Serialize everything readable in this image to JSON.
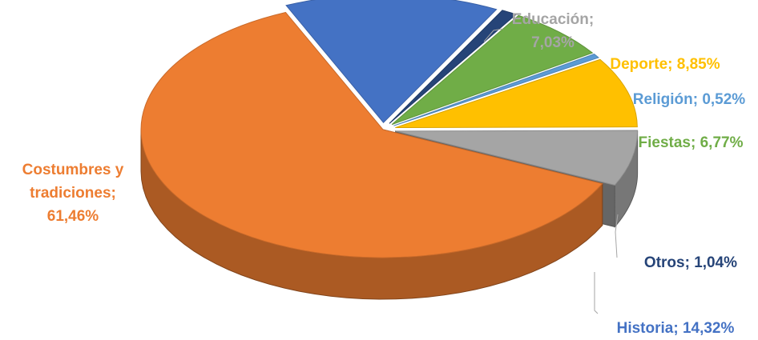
{
  "chart_data": {
    "type": "pie",
    "title": "",
    "slices": [
      {
        "name": "Educación",
        "value": 7.03,
        "label_lines": [
          "Educación;",
          "7,03%"
        ],
        "color": "#a5a5a5",
        "label_color": "#a5a5a5"
      },
      {
        "name": "Deporte",
        "value": 8.85,
        "label_lines": [
          "Deporte; 8,85%"
        ],
        "color": "#ffc000",
        "label_color": "#ffc000"
      },
      {
        "name": "Religión",
        "value": 0.52,
        "label_lines": [
          "Religión; 0,52%"
        ],
        "color": "#5b9bd5",
        "label_color": "#5b9bd5"
      },
      {
        "name": "Fiestas",
        "value": 6.77,
        "label_lines": [
          "Fiestas; 6,77%"
        ],
        "color": "#70ad47",
        "label_color": "#70ad47"
      },
      {
        "name": "Otros",
        "value": 1.04,
        "label_lines": [
          "Otros; 1,04%"
        ],
        "color": "#264478",
        "label_color": "#264478"
      },
      {
        "name": "Historia",
        "value": 14.32,
        "label_lines": [
          "Historia; 14,32%"
        ],
        "color": "#4472c4",
        "label_color": "#4472c4"
      },
      {
        "name": "Costumbres y tradiciones",
        "value": 61.46,
        "label_lines": [
          "Costumbres y",
          "tradiciones;",
          "61,46%"
        ],
        "color": "#ed7d31",
        "label_color": "#ed7d31"
      }
    ],
    "legend": "none",
    "view": "3d-exploded"
  }
}
